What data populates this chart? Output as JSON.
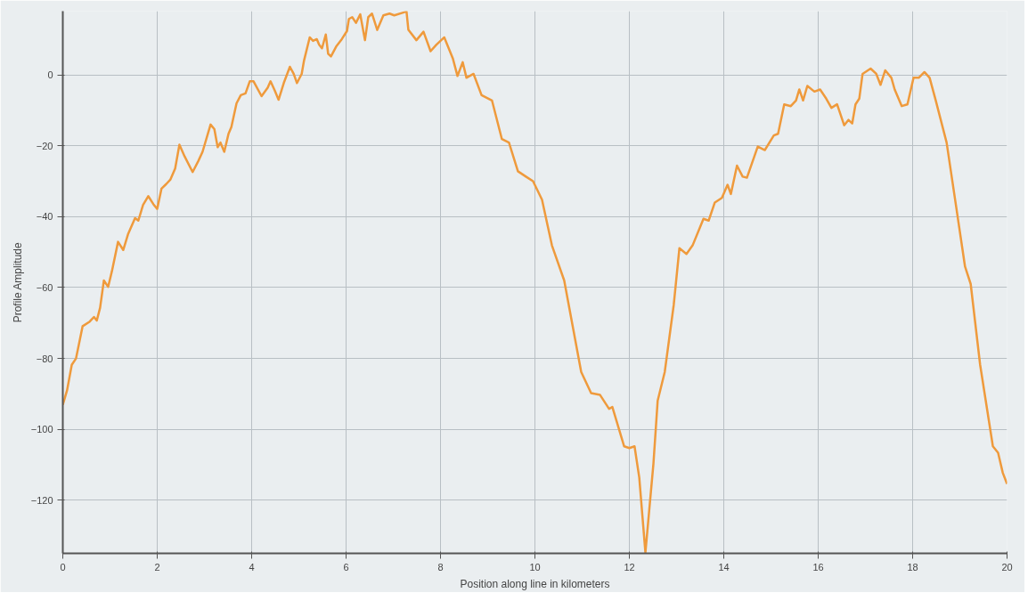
{
  "chart_data": {
    "type": "line",
    "xlabel": "Position along line in kilometers",
    "ylabel": "Profile Amplitude",
    "xlim": [
      0,
      20
    ],
    "ylim": [
      -135,
      18
    ],
    "xticks": [
      0,
      2,
      4,
      6,
      8,
      10,
      12,
      14,
      16,
      18,
      20
    ],
    "yticks": [
      -120,
      -100,
      -80,
      -60,
      -40,
      -20,
      0
    ],
    "grid": true,
    "marker": "none",
    "line_style": "solid",
    "series": [
      {
        "color": "#ef9a3c",
        "x": [
          0,
          0.09,
          0.19,
          0.28,
          0.34,
          0.42,
          0.57,
          0.66,
          0.72,
          0.79,
          0.87,
          0.96,
          1.04,
          1.17,
          1.28,
          1.38,
          1.53,
          1.6,
          1.7,
          1.81,
          1.92,
          2.0,
          2.09,
          2.19,
          2.28,
          2.38,
          2.47,
          2.58,
          2.75,
          2.87,
          2.96,
          3.13,
          3.21,
          3.28,
          3.34,
          3.42,
          3.51,
          3.57,
          3.68,
          3.77,
          3.87,
          3.96,
          4.04,
          4.21,
          4.34,
          4.4,
          4.49,
          4.57,
          4.68,
          4.81,
          4.89,
          4.96,
          5.06,
          5.11,
          5.23,
          5.3,
          5.38,
          5.43,
          5.49,
          5.57,
          5.62,
          5.68,
          5.79,
          5.91,
          6.02,
          6.06,
          6.13,
          6.21,
          6.3,
          6.4,
          6.47,
          6.55,
          6.66,
          6.79,
          6.92,
          7.02,
          7.21,
          7.28,
          7.32,
          7.49,
          7.64,
          7.79,
          7.91,
          8.08,
          8.26,
          8.36,
          8.47,
          8.55,
          8.7,
          8.87,
          9.09,
          9.3,
          9.45,
          9.64,
          9.81,
          9.96,
          10.15,
          10.36,
          10.62,
          10.98,
          11.19,
          11.38,
          11.57,
          11.64,
          11.89,
          12.0,
          12.11,
          12.21,
          12.34,
          12.51,
          12.6,
          12.75,
          12.94,
          13.06,
          13.21,
          13.34,
          13.57,
          13.68,
          13.81,
          13.96,
          14.08,
          14.15,
          14.28,
          14.4,
          14.49,
          14.72,
          14.87,
          15.06,
          15.15,
          15.28,
          15.42,
          15.53,
          15.6,
          15.68,
          15.77,
          15.92,
          16.04,
          16.17,
          16.28,
          16.4,
          16.55,
          16.64,
          16.72,
          16.79,
          16.87,
          16.94,
          17.11,
          17.23,
          17.32,
          17.42,
          17.55,
          17.62,
          17.77,
          17.89,
          18.02,
          18.13,
          18.25,
          18.36,
          18.49,
          18.72,
          18.92,
          19.11,
          19.23,
          19.43,
          19.7,
          19.81,
          19.91,
          20.0
        ],
        "values": [
          -93.1,
          -89.0,
          -81.8,
          -80.0,
          -76.1,
          -70.9,
          -69.6,
          -68.3,
          -69.3,
          -65.7,
          -58.0,
          -59.8,
          -55.4,
          -47.1,
          -49.4,
          -45.0,
          -40.4,
          -41.1,
          -36.7,
          -34.2,
          -36.5,
          -37.8,
          -32.1,
          -30.8,
          -29.5,
          -26.4,
          -19.7,
          -23.0,
          -27.4,
          -24.3,
          -21.7,
          -14.0,
          -15.3,
          -20.4,
          -19.1,
          -21.7,
          -16.6,
          -14.7,
          -8.0,
          -5.7,
          -5.2,
          -1.8,
          -1.8,
          -6.0,
          -3.6,
          -1.8,
          -4.4,
          -7.0,
          -2.3,
          2.3,
          0.3,
          -2.3,
          0.3,
          4.1,
          10.6,
          9.6,
          10.1,
          8.5,
          7.5,
          11.4,
          6.0,
          5.2,
          8.0,
          10.1,
          12.4,
          15.8,
          16.3,
          14.7,
          17.1,
          9.8,
          16.3,
          17.3,
          12.7,
          16.8,
          17.3,
          16.8,
          17.6,
          17.9,
          12.7,
          9.8,
          12.2,
          6.7,
          8.5,
          10.6,
          4.7,
          -0.3,
          3.6,
          -0.8,
          0.3,
          -5.7,
          -7.2,
          -18.1,
          -19.1,
          -27.2,
          -28.7,
          -30.0,
          -35.2,
          -48.1,
          -58.0,
          -83.8,
          -89.8,
          -90.3,
          -94.2,
          -93.7,
          -104.8,
          -105.3,
          -104.8,
          -113.6,
          -134.8,
          -109.7,
          -91.9,
          -83.8,
          -64.9,
          -48.9,
          -50.5,
          -48.1,
          -40.6,
          -41.1,
          -36.0,
          -34.7,
          -31.0,
          -33.6,
          -25.6,
          -28.7,
          -29.0,
          -20.2,
          -21.2,
          -17.1,
          -16.6,
          -8.3,
          -8.8,
          -7.2,
          -4.1,
          -7.2,
          -3.1,
          -4.7,
          -4.1,
          -6.7,
          -9.3,
          -8.3,
          -14.2,
          -12.7,
          -13.7,
          -8.3,
          -6.7,
          0.3,
          1.8,
          0.3,
          -2.8,
          1.3,
          -0.8,
          -4.1,
          -8.8,
          -8.3,
          -0.8,
          -0.8,
          0.8,
          -0.8,
          -7.2,
          -19.1,
          -37.0,
          -54.1,
          -59.0,
          -81.8,
          -104.8,
          -106.6,
          -112.3,
          -115.4
        ]
      }
    ]
  }
}
